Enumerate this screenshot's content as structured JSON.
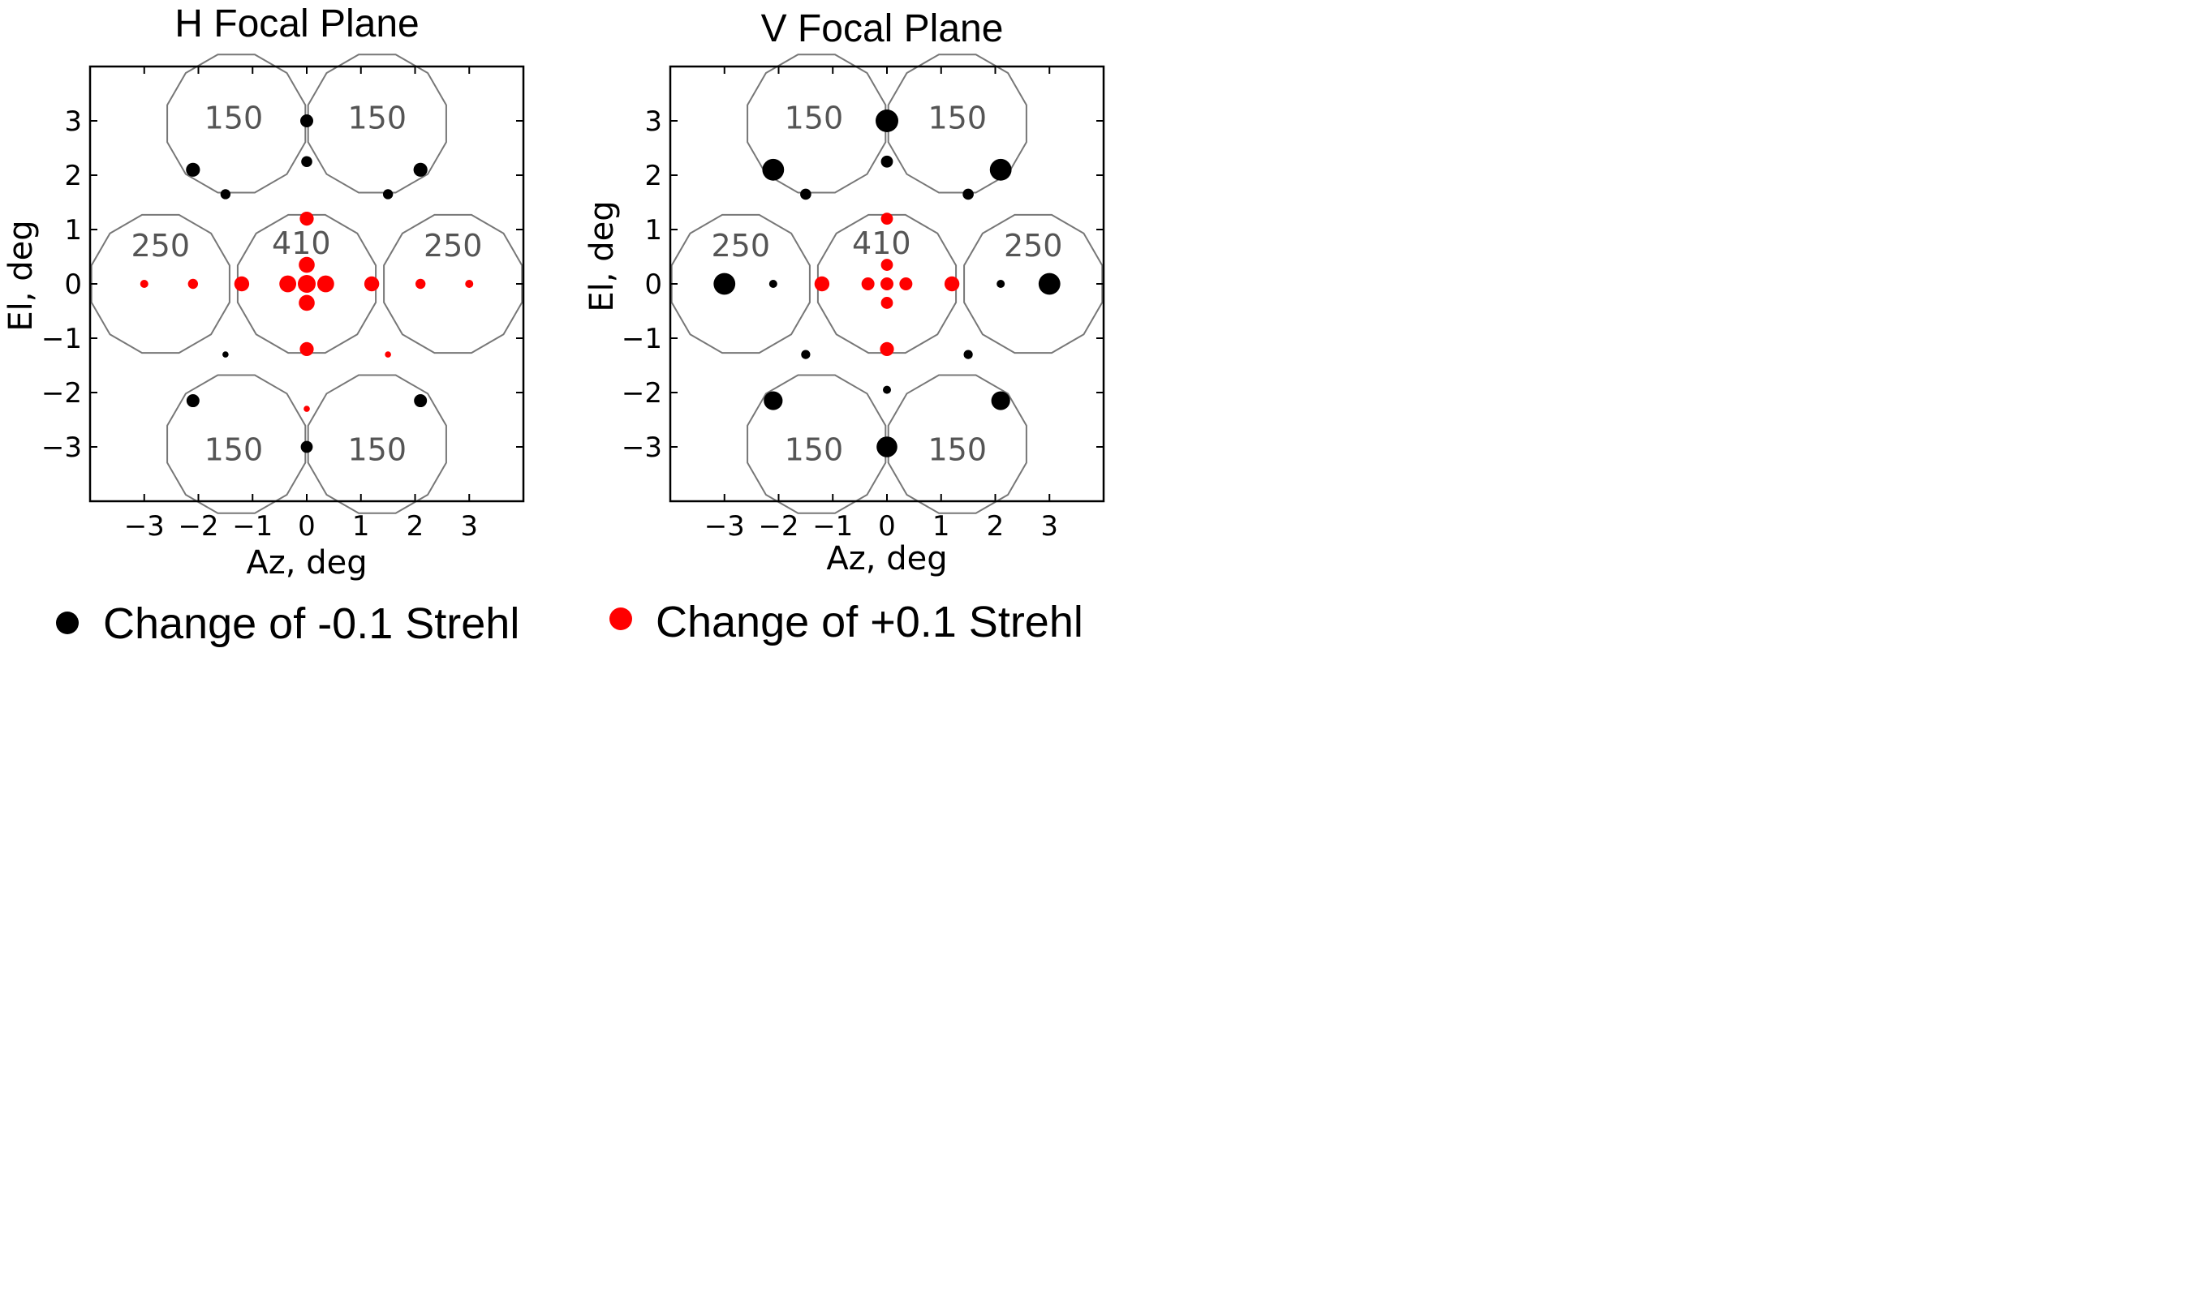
{
  "colors": {
    "negative": "#000000",
    "positive": "#ff0000",
    "horn_outline": "#777777",
    "frame": "#000000"
  },
  "legend": {
    "negative_label": "Change of -0.1 Strehl",
    "positive_label": "Change of +0.1 Strehl",
    "placement": "below plots"
  },
  "chart_data": [
    {
      "type": "scatter",
      "title": "H Focal Plane",
      "xlabel": "Az, deg",
      "ylabel": "El, deg",
      "xlim": [
        -4,
        4
      ],
      "ylim": [
        -4,
        4
      ],
      "xticks": [
        "−3",
        "−2",
        "−1",
        "0",
        "1",
        "2",
        "3"
      ],
      "xtick_values": [
        -3,
        -2,
        -1,
        0,
        1,
        2,
        3
      ],
      "yticks": [
        "3",
        "2",
        "1",
        "0",
        "−1",
        "−2",
        "−3"
      ],
      "ytick_values": [
        3,
        2,
        1,
        0,
        -1,
        -2,
        -3
      ],
      "grid": false,
      "horn_labels": [
        {
          "text": "150",
          "x": -1.35,
          "y": 3.05
        },
        {
          "text": "150",
          "x": 1.3,
          "y": 3.05
        },
        {
          "text": "250",
          "x": -2.7,
          "y": 0.7
        },
        {
          "text": "410",
          "x": -0.1,
          "y": 0.75
        },
        {
          "text": "250",
          "x": 2.7,
          "y": 0.7
        },
        {
          "text": "150",
          "x": -1.35,
          "y": -3.05
        },
        {
          "text": "150",
          "x": 1.3,
          "y": -3.05
        }
      ],
      "series": [
        {
          "sign": "negative",
          "points": [
            {
              "x": 0,
              "y": 3.0,
              "s": 0.5
            },
            {
              "x": 0,
              "y": 2.25,
              "s": 0.4
            },
            {
              "x": -2.1,
              "y": 2.1,
              "s": 0.55
            },
            {
              "x": -1.5,
              "y": 1.65,
              "s": 0.35
            },
            {
              "x": 2.1,
              "y": 2.1,
              "s": 0.55
            },
            {
              "x": 1.5,
              "y": 1.65,
              "s": 0.35
            },
            {
              "x": -1.5,
              "y": -1.3,
              "s": 0.15
            },
            {
              "x": -2.1,
              "y": -2.15,
              "s": 0.5
            },
            {
              "x": 2.1,
              "y": -2.15,
              "s": 0.5
            },
            {
              "x": 0,
              "y": -3.0,
              "s": 0.45
            }
          ]
        },
        {
          "sign": "positive",
          "points": [
            {
              "x": 0,
              "y": 1.2,
              "s": 0.55
            },
            {
              "x": 0,
              "y": 0.35,
              "s": 0.65
            },
            {
              "x": -0.35,
              "y": 0,
              "s": 0.7
            },
            {
              "x": 0,
              "y": 0,
              "s": 0.75
            },
            {
              "x": 0.35,
              "y": 0,
              "s": 0.7
            },
            {
              "x": 0,
              "y": -0.35,
              "s": 0.65
            },
            {
              "x": 0,
              "y": -1.2,
              "s": 0.55
            },
            {
              "x": -1.2,
              "y": 0,
              "s": 0.6
            },
            {
              "x": 1.2,
              "y": 0,
              "s": 0.6
            },
            {
              "x": -2.1,
              "y": 0,
              "s": 0.35
            },
            {
              "x": 2.1,
              "y": 0,
              "s": 0.35
            },
            {
              "x": -3.0,
              "y": 0,
              "s": 0.25
            },
            {
              "x": 3.0,
              "y": 0,
              "s": 0.25
            },
            {
              "x": 1.5,
              "y": -1.3,
              "s": 0.15
            },
            {
              "x": 0,
              "y": -2.3,
              "s": 0.15
            }
          ]
        }
      ]
    },
    {
      "type": "scatter",
      "title": "V Focal Plane",
      "xlabel": "Az, deg",
      "ylabel": "El, deg",
      "xlim": [
        -4,
        4
      ],
      "ylim": [
        -4,
        4
      ],
      "xticks": [
        "−3",
        "−2",
        "−1",
        "0",
        "1",
        "2",
        "3"
      ],
      "xtick_values": [
        -3,
        -2,
        -1,
        0,
        1,
        2,
        3
      ],
      "yticks": [
        "3",
        "2",
        "1",
        "0",
        "−1",
        "−2",
        "−3"
      ],
      "ytick_values": [
        3,
        2,
        1,
        0,
        -1,
        -2,
        -3
      ],
      "grid": false,
      "horn_labels": [
        {
          "text": "150",
          "x": -1.35,
          "y": 3.05
        },
        {
          "text": "150",
          "x": 1.3,
          "y": 3.05
        },
        {
          "text": "250",
          "x": -2.7,
          "y": 0.7
        },
        {
          "text": "410",
          "x": -0.1,
          "y": 0.75
        },
        {
          "text": "250",
          "x": 2.7,
          "y": 0.7
        },
        {
          "text": "150",
          "x": -1.35,
          "y": -3.05
        },
        {
          "text": "150",
          "x": 1.3,
          "y": -3.05
        }
      ],
      "series": [
        {
          "sign": "negative",
          "points": [
            {
              "x": 0,
              "y": 3.0,
              "s": 1.0
            },
            {
              "x": 0,
              "y": 2.25,
              "s": 0.45
            },
            {
              "x": -2.1,
              "y": 2.1,
              "s": 0.95
            },
            {
              "x": -1.5,
              "y": 1.65,
              "s": 0.4
            },
            {
              "x": 2.1,
              "y": 2.1,
              "s": 0.95
            },
            {
              "x": 1.5,
              "y": 1.65,
              "s": 0.4
            },
            {
              "x": -3.0,
              "y": 0,
              "s": 0.95
            },
            {
              "x": 3.0,
              "y": 0,
              "s": 0.95
            },
            {
              "x": -2.1,
              "y": 0,
              "s": 0.25
            },
            {
              "x": 2.1,
              "y": 0,
              "s": 0.25
            },
            {
              "x": -1.5,
              "y": -1.3,
              "s": 0.3
            },
            {
              "x": 1.5,
              "y": -1.3,
              "s": 0.3
            },
            {
              "x": 0,
              "y": -1.95,
              "s": 0.25
            },
            {
              "x": -2.1,
              "y": -2.15,
              "s": 0.8
            },
            {
              "x": 2.1,
              "y": -2.15,
              "s": 0.8
            },
            {
              "x": 0,
              "y": -3.0,
              "s": 0.9
            }
          ]
        },
        {
          "sign": "positive",
          "points": [
            {
              "x": 0,
              "y": 1.2,
              "s": 0.45
            },
            {
              "x": 0,
              "y": 0.35,
              "s": 0.45
            },
            {
              "x": -0.35,
              "y": 0,
              "s": 0.5
            },
            {
              "x": 0,
              "y": 0,
              "s": 0.5
            },
            {
              "x": 0.35,
              "y": 0,
              "s": 0.5
            },
            {
              "x": 0,
              "y": -0.35,
              "s": 0.45
            },
            {
              "x": 0,
              "y": -1.2,
              "s": 0.55
            },
            {
              "x": -1.2,
              "y": 0,
              "s": 0.6
            },
            {
              "x": 1.2,
              "y": 0,
              "s": 0.6
            }
          ]
        }
      ]
    }
  ]
}
